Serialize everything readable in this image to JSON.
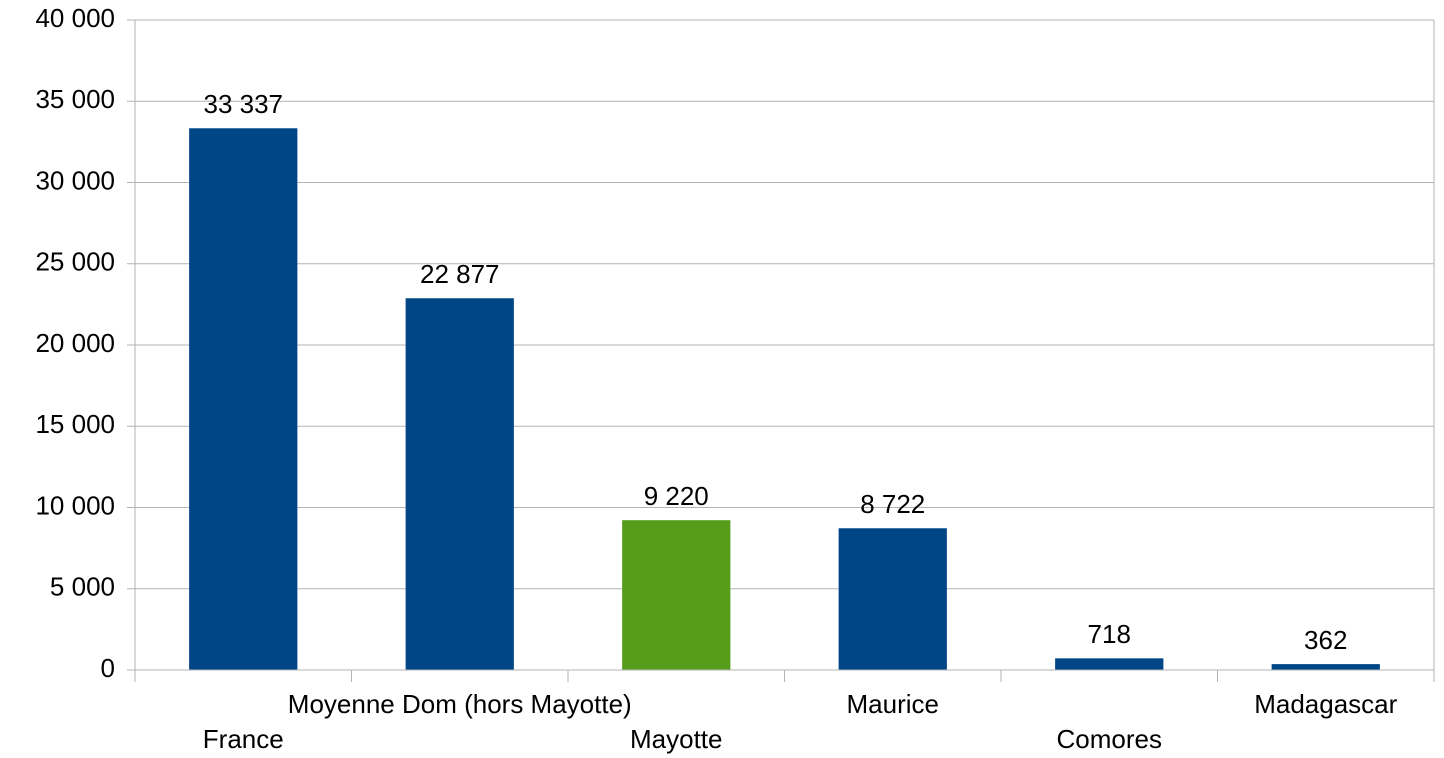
{
  "chart_data": {
    "type": "bar",
    "categories": [
      "France",
      "Moyenne Dom (hors Mayotte)",
      "Mayotte",
      "Maurice",
      "Comores",
      "Madagascar"
    ],
    "values": [
      33337,
      22877,
      9220,
      8722,
      718,
      362
    ],
    "value_labels": [
      "33 337",
      "22 877",
      "9 220",
      "8 722",
      "718",
      "362"
    ],
    "colors": [
      "#004586",
      "#004586",
      "#579d1c",
      "#004586",
      "#004586",
      "#004586"
    ],
    "ylim": [
      0,
      40000
    ],
    "yticks": [
      0,
      {
        "value": 5000,
        "label": "5 000"
      },
      {
        "value": 10000,
        "label": "10 000"
      },
      {
        "value": 15000,
        "label": "15 000"
      },
      {
        "value": 20000,
        "label": "20 000"
      },
      {
        "value": 25000,
        "label": "25 000"
      },
      {
        "value": 30000,
        "label": "30 000"
      },
      {
        "value": 35000,
        "label": "35 000"
      },
      {
        "value": 40000,
        "label": "40 000"
      }
    ],
    "grid": true
  }
}
